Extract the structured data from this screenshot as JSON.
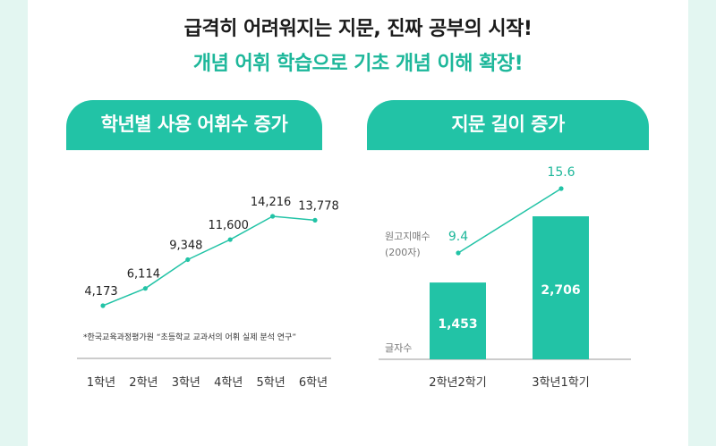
{
  "headline": "급격히 어려워지는 지문, 진짜 공부의 시작!",
  "subline": "개념 어휘 학습으로 기초 개념 이해 확장!",
  "left_tab": "학년별 사용 어휘수 증가",
  "right_tab": "지문 길이 증가",
  "source_note": "*한국교육과정평가원 “초등학교 교과서의 어휘 실제 분석 연구”",
  "colors": {
    "accent": "#22c3a6",
    "accent_text": "#1db79a",
    "background": "#e3f6f1"
  },
  "chart_data": [
    {
      "type": "line",
      "title": "학년별 사용 어휘수 증가",
      "categories": [
        "1학년",
        "2학년",
        "3학년",
        "4학년",
        "5학년",
        "6학년"
      ],
      "values": [
        4173,
        6114,
        9348,
        11600,
        14216,
        13778
      ],
      "value_labels": [
        "4,173",
        "6,114",
        "9,348",
        "11,600",
        "14,216",
        "13,778"
      ],
      "ylim": [
        0,
        16000
      ],
      "grid": false
    },
    {
      "type": "bar",
      "title": "지문 길이 증가",
      "categories": [
        "2학년2학기",
        "3학년1학기"
      ],
      "bar_series": {
        "label": "글자수",
        "values": [
          1453,
          2706
        ],
        "value_labels": [
          "1,453",
          "2,706"
        ]
      },
      "line_series": {
        "label": "원고지매수\n(200자)",
        "values": [
          9.4,
          15.6
        ],
        "value_labels": [
          "9.4",
          "15.6"
        ]
      },
      "ylim": [
        0,
        3000
      ]
    }
  ]
}
